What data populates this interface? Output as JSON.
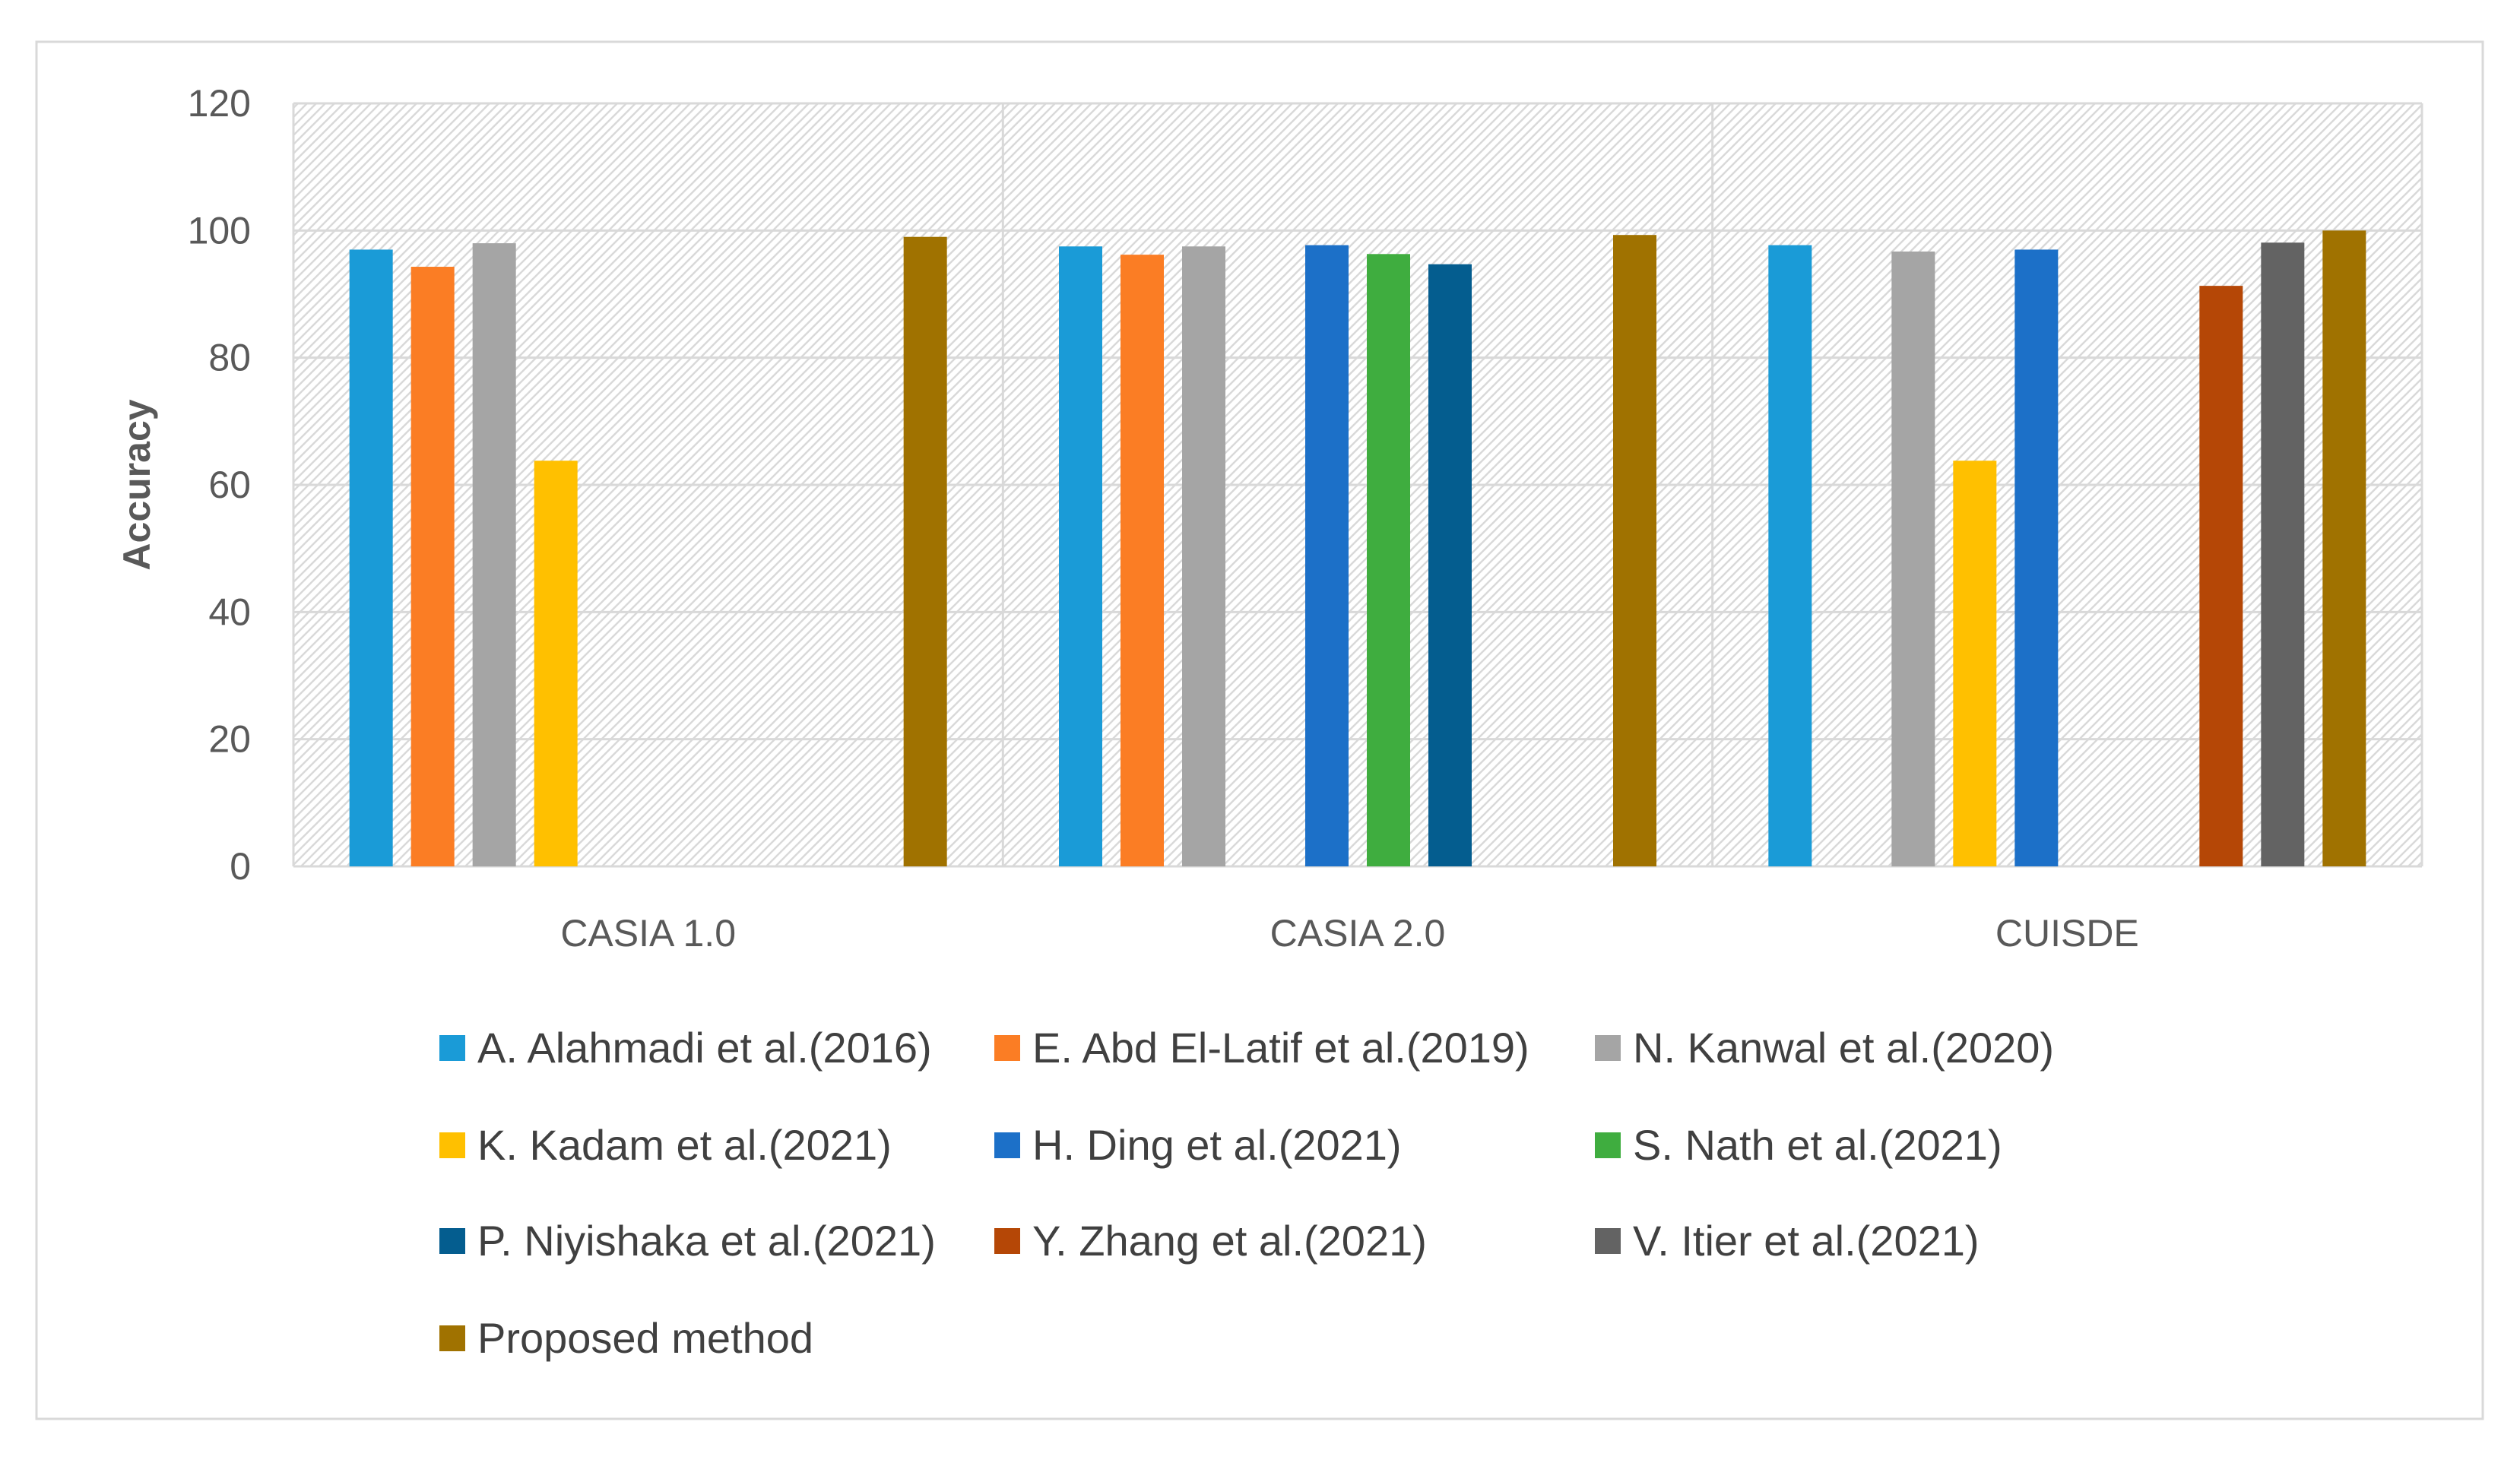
{
  "chart_data": {
    "type": "bar",
    "title": "",
    "xlabel": "",
    "ylabel": "Accuracy",
    "ylim": [
      0,
      120
    ],
    "yticks": [
      0,
      20,
      40,
      60,
      80,
      100,
      120
    ],
    "categories": [
      "CASIA 1.0",
      "CASIA 2.0",
      "CUISDE"
    ],
    "grid": true,
    "legend_position": "bottom",
    "series": [
      {
        "name": "A. Alahmadi et al.(2016)",
        "color": "#1a9bd7",
        "values": [
          97,
          97.5,
          97.7
        ]
      },
      {
        "name": "E. Abd El-Latif et al.(2019)",
        "color": "#fb7d24",
        "values": [
          94.3,
          96.2,
          null
        ]
      },
      {
        "name": "N. Kanwal et al.(2020)",
        "color": "#a5a5a5",
        "values": [
          98,
          97.5,
          96.7
        ]
      },
      {
        "name": "K. Kadam et al.(2021)",
        "color": "#ffc000",
        "values": [
          63.8,
          null,
          63.8
        ]
      },
      {
        "name": "H. Ding et al.(2021)",
        "color": "#1c70c8",
        "values": [
          null,
          97.7,
          97
        ]
      },
      {
        "name": "S. Nath et al.(2021)",
        "color": "#3fad3f",
        "values": [
          null,
          96.3,
          null
        ]
      },
      {
        "name": "P. Niyishaka et al.(2021)",
        "color": "#045d8f",
        "values": [
          null,
          94.7,
          null
        ]
      },
      {
        "name": "Y. Zhang et al.(2021)",
        "color": "#b54706",
        "values": [
          null,
          null,
          91.3
        ]
      },
      {
        "name": "V. Itier et al.(2021)",
        "color": "#636363",
        "values": [
          null,
          null,
          98.1
        ]
      },
      {
        "name": "Proposed method",
        "color": "#a07200",
        "values": [
          99,
          99.3,
          100
        ]
      }
    ]
  }
}
